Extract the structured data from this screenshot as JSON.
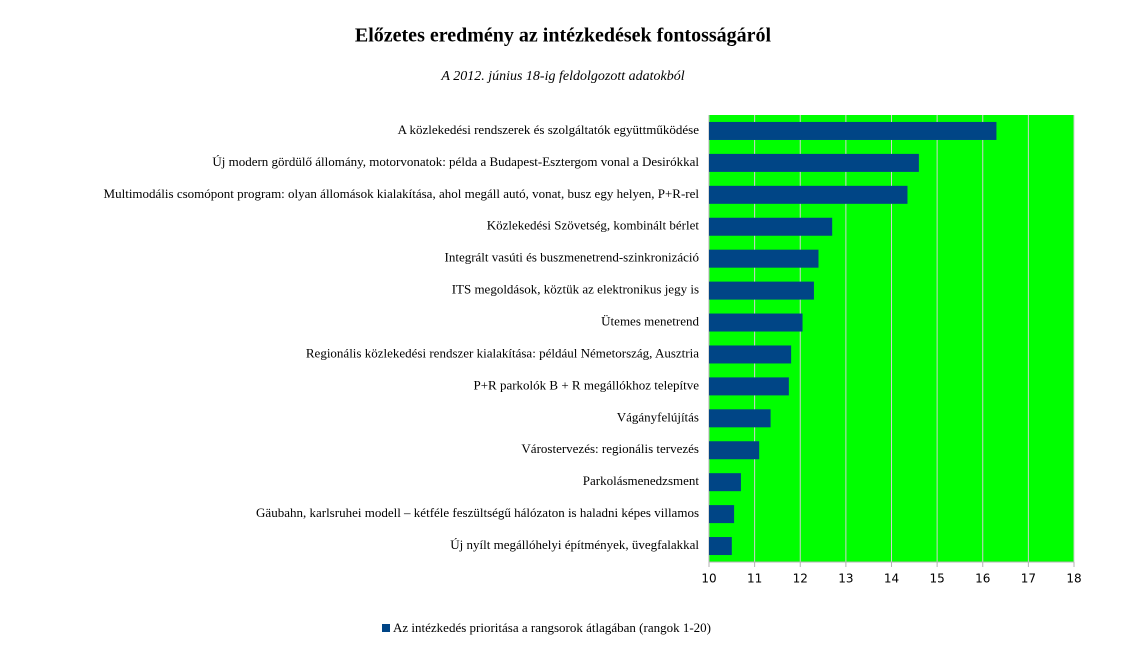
{
  "chart_data": {
    "type": "bar",
    "orientation": "horizontal",
    "title": "Előzetes eredmény az intézkedések fontosságáról",
    "subtitle": "A 2012. június 18-ig feldolgozott adatokból",
    "categories": [
      "A közlekedési rendszerek és szolgáltatók együttműködése",
      "Új modern gördülő állomány, motorvonatok: példa a Budapest-Esztergom vonal a Desirókkal",
      "Multimodális csomópont program: olyan állomások kialakítása, ahol megáll autó, vonat, busz egy helyen, P+R-rel",
      "Közlekedési Szövetség, kombinált bérlet",
      "Integrált vasúti és buszmenetrend-szinkronizáció",
      "ITS megoldások, köztük az elektronikus jegy is",
      "Ütemes menetrend",
      "Regionális közlekedési rendszer kialakítása: például Németország, Ausztria",
      "P+R parkolók B + R megállókhoz telepítve",
      "Vágányfelújítás",
      "Várostervezés: regionális tervezés",
      "Parkolásmenedzsment",
      "Gäubahn, karlsruhei modell – kétféle feszültségű hálózaton is haladni képes villamos",
      "Új nyílt megállóhelyi építmények, üvegfalakkal"
    ],
    "series": [
      {
        "name": "Az intézkedés prioritása a rangsorok átlagában (rangok 1-20)",
        "color": "#004586",
        "values": [
          16.3,
          14.6,
          14.35,
          12.7,
          12.4,
          12.3,
          12.05,
          11.8,
          11.75,
          11.35,
          11.1,
          10.7,
          10.55,
          10.5
        ]
      }
    ],
    "xlim": [
      10,
      18
    ],
    "xticks": [
      10,
      11,
      12,
      13,
      14,
      15,
      16,
      17,
      18
    ],
    "grid": true,
    "plot_background": "#00ff00",
    "legend": "bottom"
  }
}
